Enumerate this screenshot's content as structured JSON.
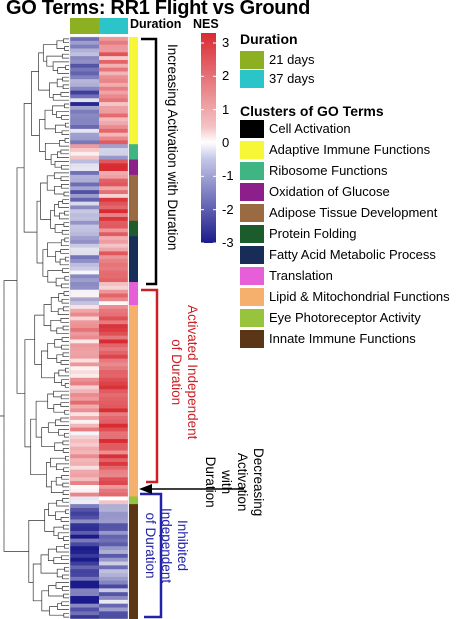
{
  "chart_data": {
    "type": "heatmap",
    "title": "GO Terms: RR1 Flight vs Ground",
    "columns": [
      "21 days",
      "37 days"
    ],
    "column_header": "Duration",
    "value_label": "NES",
    "colorbar": {
      "label": "NES",
      "range": [
        -3,
        3.3
      ],
      "ticks": [
        3,
        2,
        1,
        0,
        -1,
        -2,
        -3
      ],
      "colors": {
        "low": "#1a1a8a",
        "mid": "#ffffff",
        "high": "#d82b32"
      }
    },
    "row_blocks": [
      {
        "rows": 28,
        "v21": -1.4,
        "v37": 1.3,
        "cluster": "Adaptive Immune Functions"
      },
      {
        "rows": 4,
        "v21": 0.4,
        "v37": -0.6,
        "cluster": "Ribosome Functions"
      },
      {
        "rows": 4,
        "v21": -0.5,
        "v37": 2.2,
        "cluster": "Oxidation of Glucose"
      },
      {
        "rows": 12,
        "v21": -1.1,
        "v37": 1.6,
        "cluster": "Adipose Tissue Development"
      },
      {
        "rows": 4,
        "v21": -1.0,
        "v37": 1.7,
        "cluster": "Protein Folding"
      },
      {
        "rows": 12,
        "v21": -0.9,
        "v37": 1.4,
        "cluster": "Fatty Acid Metabolic Process"
      },
      {
        "rows": 6,
        "v21": -0.6,
        "v37": 1.2,
        "cluster": "Translation"
      },
      {
        "rows": 50,
        "v21": 0.9,
        "v37": 2.0,
        "cluster": "Lipid & Mitochondrial Functions"
      },
      {
        "rows": 2,
        "v21": -0.3,
        "v37": -0.3,
        "cluster": "Eye Photoreceptor Activity"
      },
      {
        "rows": 30,
        "v21": -2.0,
        "v37": -1.3,
        "cluster": "Innate Immune Functions"
      }
    ],
    "legend": {
      "duration_title": "Duration",
      "duration": [
        {
          "label": "21 days",
          "color": "#8cb022"
        },
        {
          "label": "37 days",
          "color": "#2bc4c8"
        }
      ],
      "clusters_title": "Clusters of GO Terms",
      "clusters": [
        {
          "label": "Cell Activation",
          "color": "#000000"
        },
        {
          "label": "Adaptive Immune Functions",
          "color": "#f7f738"
        },
        {
          "label": "Ribosome Functions",
          "color": "#40b584"
        },
        {
          "label": "Oxidation of Glucose",
          "color": "#8c1f8a"
        },
        {
          "label": "Adipose Tissue Development",
          "color": "#9a6b42"
        },
        {
          "label": "Protein Folding",
          "color": "#1c5c2c"
        },
        {
          "label": "Fatty Acid Metabolic Process",
          "color": "#172c56"
        },
        {
          "label": "Translation",
          "color": "#e65ed8"
        },
        {
          "label": "Lipid & Mitochondrial Functions",
          "color": "#f5b06d"
        },
        {
          "label": "Eye Photoreceptor Activity",
          "color": "#97c43c"
        },
        {
          "label": "Innate Immune Functions",
          "color": "#5a3616"
        }
      ]
    },
    "annotations": [
      {
        "lines": [
          "Increasing Activation with Duration"
        ],
        "color": "#000000"
      },
      {
        "lines": [
          "Activated Independent",
          "of Duration"
        ],
        "color": "#cc2026"
      },
      {
        "lines": [
          "Decreasing",
          "Activation",
          "with",
          "Duration"
        ],
        "color": "#000000"
      },
      {
        "lines": [
          "Inhibited",
          "Independent",
          "of Duration"
        ],
        "color": "#2222aa"
      }
    ]
  }
}
